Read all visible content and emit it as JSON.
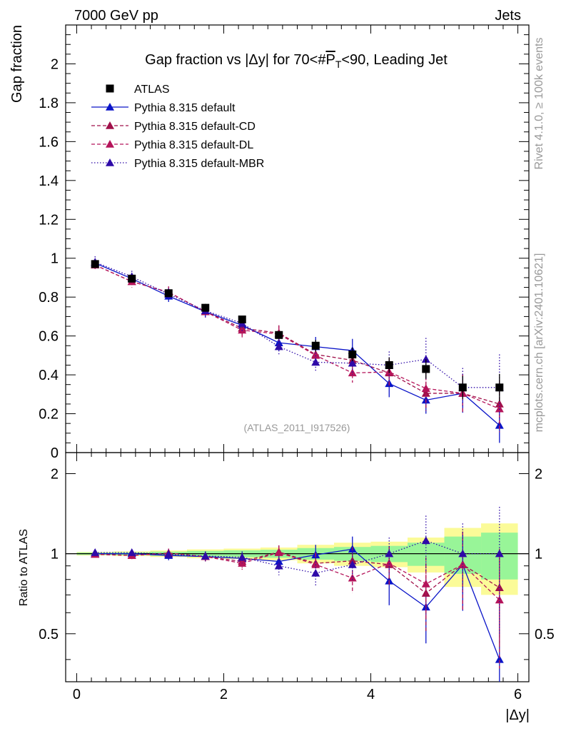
{
  "header": {
    "left": "7000 GeV pp",
    "right": "Jets"
  },
  "side_labels": {
    "top": "Rivet 4.1.0, ≥ 100k events",
    "bottom": "mcplots.cern.ch [arXiv:2401.10621]"
  },
  "colors": {
    "atlas": "#000000",
    "default": "#0a14c8",
    "cd": "#a0104a",
    "dl": "#b5145a",
    "mbr": "#2e0aa8",
    "band_inner": "#98f598",
    "band_outer": "#fbfb98"
  },
  "chart_data": [
    {
      "type": "scatter",
      "title_parts": [
        "Gap fraction vs |Δy| for 70<#",
        "P",
        "T",
        "<90, Leading Jet"
      ],
      "ylabel": "Gap fraction",
      "xlim": [
        -0.15,
        6.15
      ],
      "ylim": [
        0,
        2.2
      ],
      "yticks": [
        {
          "v": 0,
          "label": "0"
        },
        {
          "v": 0.2,
          "label": "0.2"
        },
        {
          "v": 0.4,
          "label": "0.4"
        },
        {
          "v": 0.6,
          "label": "0.6"
        },
        {
          "v": 0.8,
          "label": "0.8"
        },
        {
          "v": 1,
          "label": "1"
        },
        {
          "v": 1.2,
          "label": "1.2"
        },
        {
          "v": 1.4,
          "label": "1.4"
        },
        {
          "v": 1.6,
          "label": "1.6"
        },
        {
          "v": 1.8,
          "label": "1.8"
        },
        {
          "v": 2,
          "label": "2"
        }
      ],
      "reference": "(ATLAS_2011_I917526)",
      "x": [
        0.25,
        0.75,
        1.25,
        1.75,
        2.25,
        2.75,
        3.25,
        3.75,
        4.25,
        4.75,
        5.25,
        5.75
      ],
      "series": [
        {
          "name": "ATLAS",
          "key": "atlas",
          "style": "data",
          "values": [
            0.97,
            0.895,
            0.82,
            0.745,
            0.685,
            0.605,
            0.55,
            0.505,
            0.45,
            0.43,
            0.335,
            0.335
          ],
          "errors": [
            0.01,
            0.01,
            0.015,
            0.02,
            0.02,
            0.02,
            0.03,
            0.035,
            0.04,
            0.05,
            0.06,
            0.07
          ]
        },
        {
          "name": "Pythia 8.315 default",
          "key": "default",
          "style": "solid",
          "values": [
            0.975,
            0.895,
            0.805,
            0.725,
            0.655,
            0.565,
            0.545,
            0.525,
            0.355,
            0.27,
            0.305,
            0.14
          ],
          "errors": [
            0.02,
            0.03,
            0.03,
            0.03,
            0.04,
            0.04,
            0.05,
            0.06,
            0.07,
            0.07,
            0.1,
            0.09
          ]
        },
        {
          "name": "Pythia 8.315 default-CD",
          "key": "cd",
          "style": "dashed",
          "values": [
            0.965,
            0.88,
            0.825,
            0.725,
            0.64,
            0.615,
            0.505,
            0.475,
            0.41,
            0.305,
            0.305,
            0.25
          ],
          "errors": [
            0.02,
            0.03,
            0.03,
            0.03,
            0.04,
            0.04,
            0.05,
            0.06,
            0.07,
            0.09,
            0.1,
            0.12
          ]
        },
        {
          "name": "Pythia 8.315 default-DL",
          "key": "dl",
          "style": "dashed",
          "values": [
            0.965,
            0.88,
            0.825,
            0.725,
            0.63,
            0.61,
            0.5,
            0.41,
            0.415,
            0.33,
            0.305,
            0.225
          ],
          "errors": [
            0.02,
            0.03,
            0.03,
            0.03,
            0.04,
            0.04,
            0.05,
            0.05,
            0.07,
            0.09,
            0.1,
            0.12
          ]
        },
        {
          "name": "Pythia 8.315 default-MBR",
          "key": "mbr",
          "style": "dotted",
          "values": [
            0.98,
            0.905,
            0.815,
            0.73,
            0.665,
            0.545,
            0.465,
            0.46,
            0.45,
            0.48,
            0.335,
            0.335
          ],
          "errors": [
            0.03,
            0.03,
            0.03,
            0.03,
            0.04,
            0.04,
            0.05,
            0.06,
            0.07,
            0.11,
            0.1,
            0.17
          ]
        }
      ]
    },
    {
      "type": "scatter",
      "ylabel": "Ratio to ATLAS",
      "xlabel": "|Δy|",
      "xlim": [
        -0.15,
        6.15
      ],
      "ylim": [
        0.33,
        2.4
      ],
      "log_y": true,
      "yticks": [
        {
          "v": 0.5,
          "label": "0.5"
        },
        {
          "v": 1,
          "label": "1"
        },
        {
          "v": 2,
          "label": "2"
        }
      ],
      "xticks": [
        {
          "v": 0,
          "label": "0"
        },
        {
          "v": 2,
          "label": "2"
        },
        {
          "v": 4,
          "label": "4"
        },
        {
          "v": 6,
          "label": "6"
        }
      ],
      "x": [
        0.25,
        0.75,
        1.25,
        1.75,
        2.25,
        2.75,
        3.25,
        3.75,
        4.25,
        4.75,
        5.25,
        5.75
      ],
      "bands": {
        "inner": [
          0.01,
          0.012,
          0.018,
          0.025,
          0.03,
          0.035,
          0.05,
          0.06,
          0.07,
          0.1,
          0.16,
          0.2
        ],
        "outer": [
          0.015,
          0.02,
          0.028,
          0.038,
          0.045,
          0.055,
          0.08,
          0.1,
          0.11,
          0.15,
          0.25,
          0.3
        ]
      },
      "series": [
        {
          "name": "Pythia 8.315 default",
          "key": "default",
          "style": "solid",
          "values": [
            1.0,
            1.0,
            0.985,
            0.975,
            0.96,
            0.935,
            0.99,
            1.04,
            0.79,
            0.63,
            0.91,
            0.4
          ],
          "errors": [
            0.02,
            0.03,
            0.04,
            0.04,
            0.05,
            0.06,
            0.09,
            0.12,
            0.15,
            0.17,
            0.3,
            0.25
          ]
        },
        {
          "name": "Pythia 8.315 default-CD",
          "key": "cd",
          "style": "dashed",
          "values": [
            0.995,
            0.985,
            1.005,
            0.975,
            0.935,
            1.015,
            0.92,
            0.94,
            0.91,
            0.71,
            0.91,
            0.745
          ],
          "errors": [
            0.02,
            0.03,
            0.04,
            0.04,
            0.05,
            0.06,
            0.09,
            0.12,
            0.15,
            0.2,
            0.3,
            0.3
          ]
        },
        {
          "name": "Pythia 8.315 default-DL",
          "key": "dl",
          "style": "dashed",
          "values": [
            0.995,
            0.985,
            1.005,
            0.975,
            0.92,
            1.01,
            0.91,
            0.81,
            0.92,
            0.77,
            0.91,
            0.67
          ],
          "errors": [
            0.02,
            0.03,
            0.04,
            0.04,
            0.05,
            0.06,
            0.09,
            0.1,
            0.15,
            0.2,
            0.3,
            0.3
          ]
        },
        {
          "name": "Pythia 8.315 default-MBR",
          "key": "mbr",
          "style": "dotted",
          "values": [
            1.01,
            1.01,
            0.995,
            0.98,
            0.97,
            0.9,
            0.845,
            0.91,
            1.0,
            1.12,
            1.0,
            1.0
          ],
          "errors": [
            0.03,
            0.03,
            0.04,
            0.04,
            0.05,
            0.07,
            0.09,
            0.12,
            0.15,
            0.27,
            0.3,
            0.5
          ]
        }
      ]
    }
  ]
}
